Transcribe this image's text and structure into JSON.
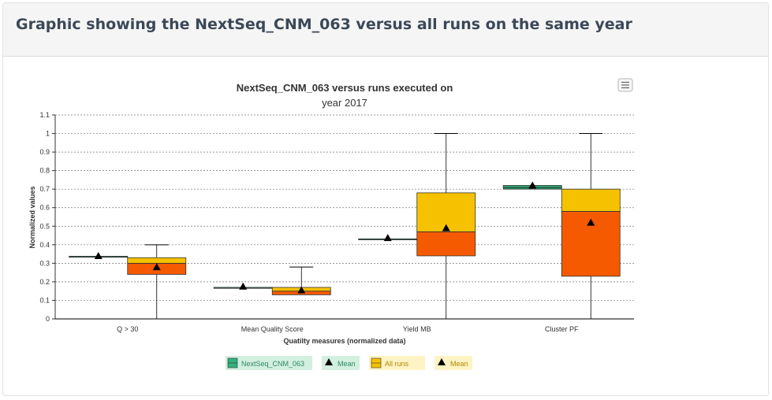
{
  "panel": {
    "title": "Graphic showing the NextSeq_CNM_063 versus all runs on the same year"
  },
  "chart_data": {
    "type": "boxplot",
    "title_lines": [
      "NextSeq_CNM_063 versus runs executed on",
      "year 2017"
    ],
    "xlabel": "Quatilty measures (normalized data)",
    "ylabel": "Normalized values",
    "ylim": [
      0,
      1.1
    ],
    "yticks": [
      0,
      0.1,
      0.2,
      0.3,
      0.4,
      0.5,
      0.6,
      0.7,
      0.8,
      0.9,
      1,
      1.1
    ],
    "grid": true,
    "categories": [
      "Q > 30",
      "Mean Quality Score",
      "Yield MB",
      "Cluster PF"
    ],
    "series": [
      {
        "name": "NextSeq_CNM_063",
        "color_lower": "#1f8f64",
        "color_upper": "#2fb37c",
        "boxes": [
          {
            "min": 0.335,
            "q1": 0.335,
            "median": 0.337,
            "q3": 0.338,
            "max": 0.338,
            "mean": 0.34
          },
          {
            "min": 0.168,
            "q1": 0.168,
            "median": 0.169,
            "q3": 0.17,
            "max": 0.17,
            "mean": 0.175
          },
          {
            "min": 0.43,
            "q1": 0.43,
            "median": 0.431,
            "q3": 0.432,
            "max": 0.432,
            "mean": 0.437
          },
          {
            "min": 0.7,
            "q1": 0.7,
            "median": 0.71,
            "q3": 0.72,
            "max": 0.72,
            "mean": 0.72
          }
        ]
      },
      {
        "name": "All runs",
        "color_lower": "#f55a00",
        "color_upper": "#f6c200",
        "boxes": [
          {
            "min": 0,
            "q1": 0.24,
            "median": 0.3,
            "q3": 0.33,
            "max": 0.4,
            "mean": 0.28
          },
          {
            "min": 0.13,
            "q1": 0.13,
            "median": 0.15,
            "q3": 0.17,
            "max": 0.28,
            "mean": 0.155
          },
          {
            "min": 0,
            "q1": 0.34,
            "median": 0.47,
            "q3": 0.68,
            "max": 1.0,
            "mean": 0.49
          },
          {
            "min": 0,
            "q1": 0.23,
            "median": 0.58,
            "q3": 0.7,
            "max": 1.0,
            "mean": 0.52
          }
        ]
      }
    ],
    "legend": {
      "placement": "bottom-center",
      "items": [
        {
          "label": "NextSeq_CNM_063",
          "kind": "box",
          "bg": "#d2efe0",
          "text": "#2d8a5d",
          "color": "#2fb37c"
        },
        {
          "label": "Mean",
          "kind": "triangle",
          "bg": "#d2efe0",
          "text": "#2d8a5d"
        },
        {
          "label": "All runs",
          "kind": "box",
          "bg": "#fdf3c4",
          "text": "#b08a00",
          "color": "#f6c200"
        },
        {
          "label": "Mean",
          "kind": "triangle",
          "bg": "#fdf3c4",
          "text": "#b08a00"
        }
      ]
    }
  }
}
